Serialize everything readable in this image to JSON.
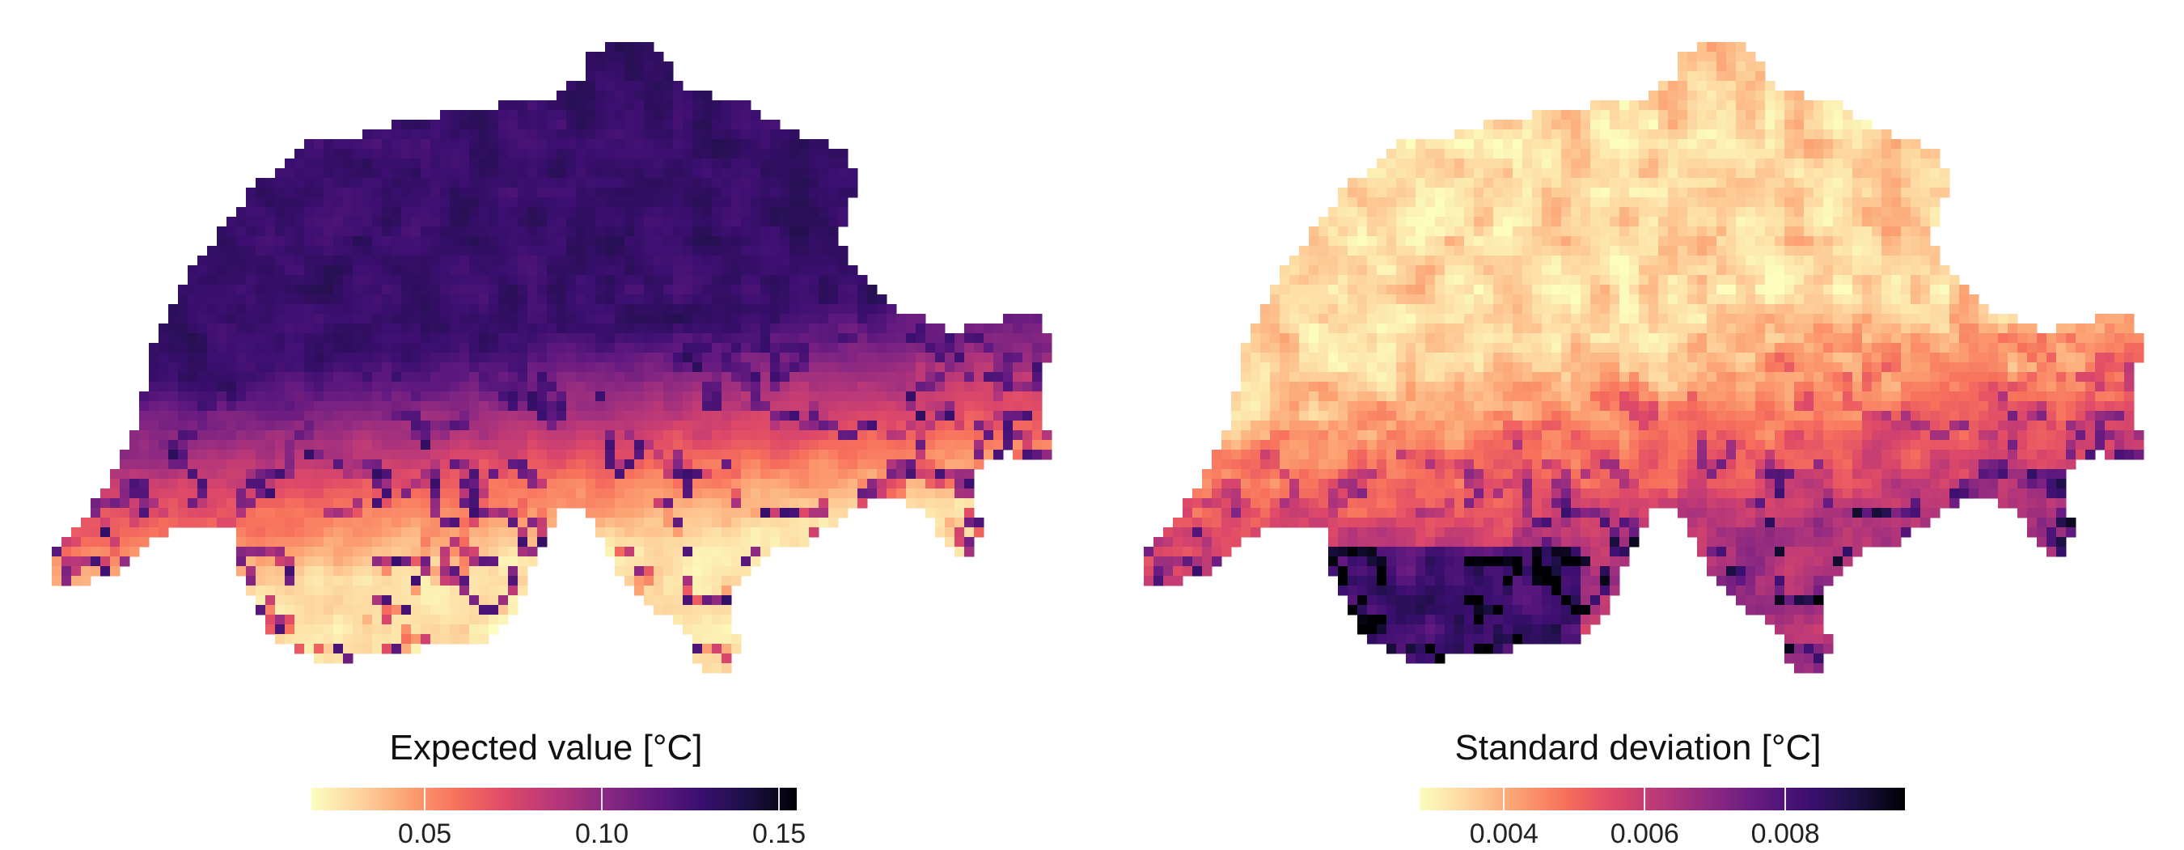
{
  "maps": [
    {
      "id": "expected",
      "legend": {
        "title": "Expected value [°C]",
        "ticks": [
          "0.05",
          "0.10",
          "0.15"
        ],
        "tick_values": [
          0.05,
          0.1,
          0.15
        ],
        "range": [
          0.018,
          0.155
        ]
      },
      "palette": "magma-reversed",
      "description_colors": {
        "low": "#fcfdbf",
        "high": "#000004"
      }
    },
    {
      "id": "stddev",
      "legend": {
        "title": "Standard deviation [°C]",
        "ticks": [
          "0.004",
          "0.006",
          "0.008"
        ],
        "tick_values": [
          0.004,
          0.006,
          0.008
        ],
        "range": [
          0.0028,
          0.0097
        ]
      },
      "palette": "magma-reversed",
      "description_colors": {
        "low": "#fcfdbf",
        "high": "#000004"
      }
    }
  ]
}
